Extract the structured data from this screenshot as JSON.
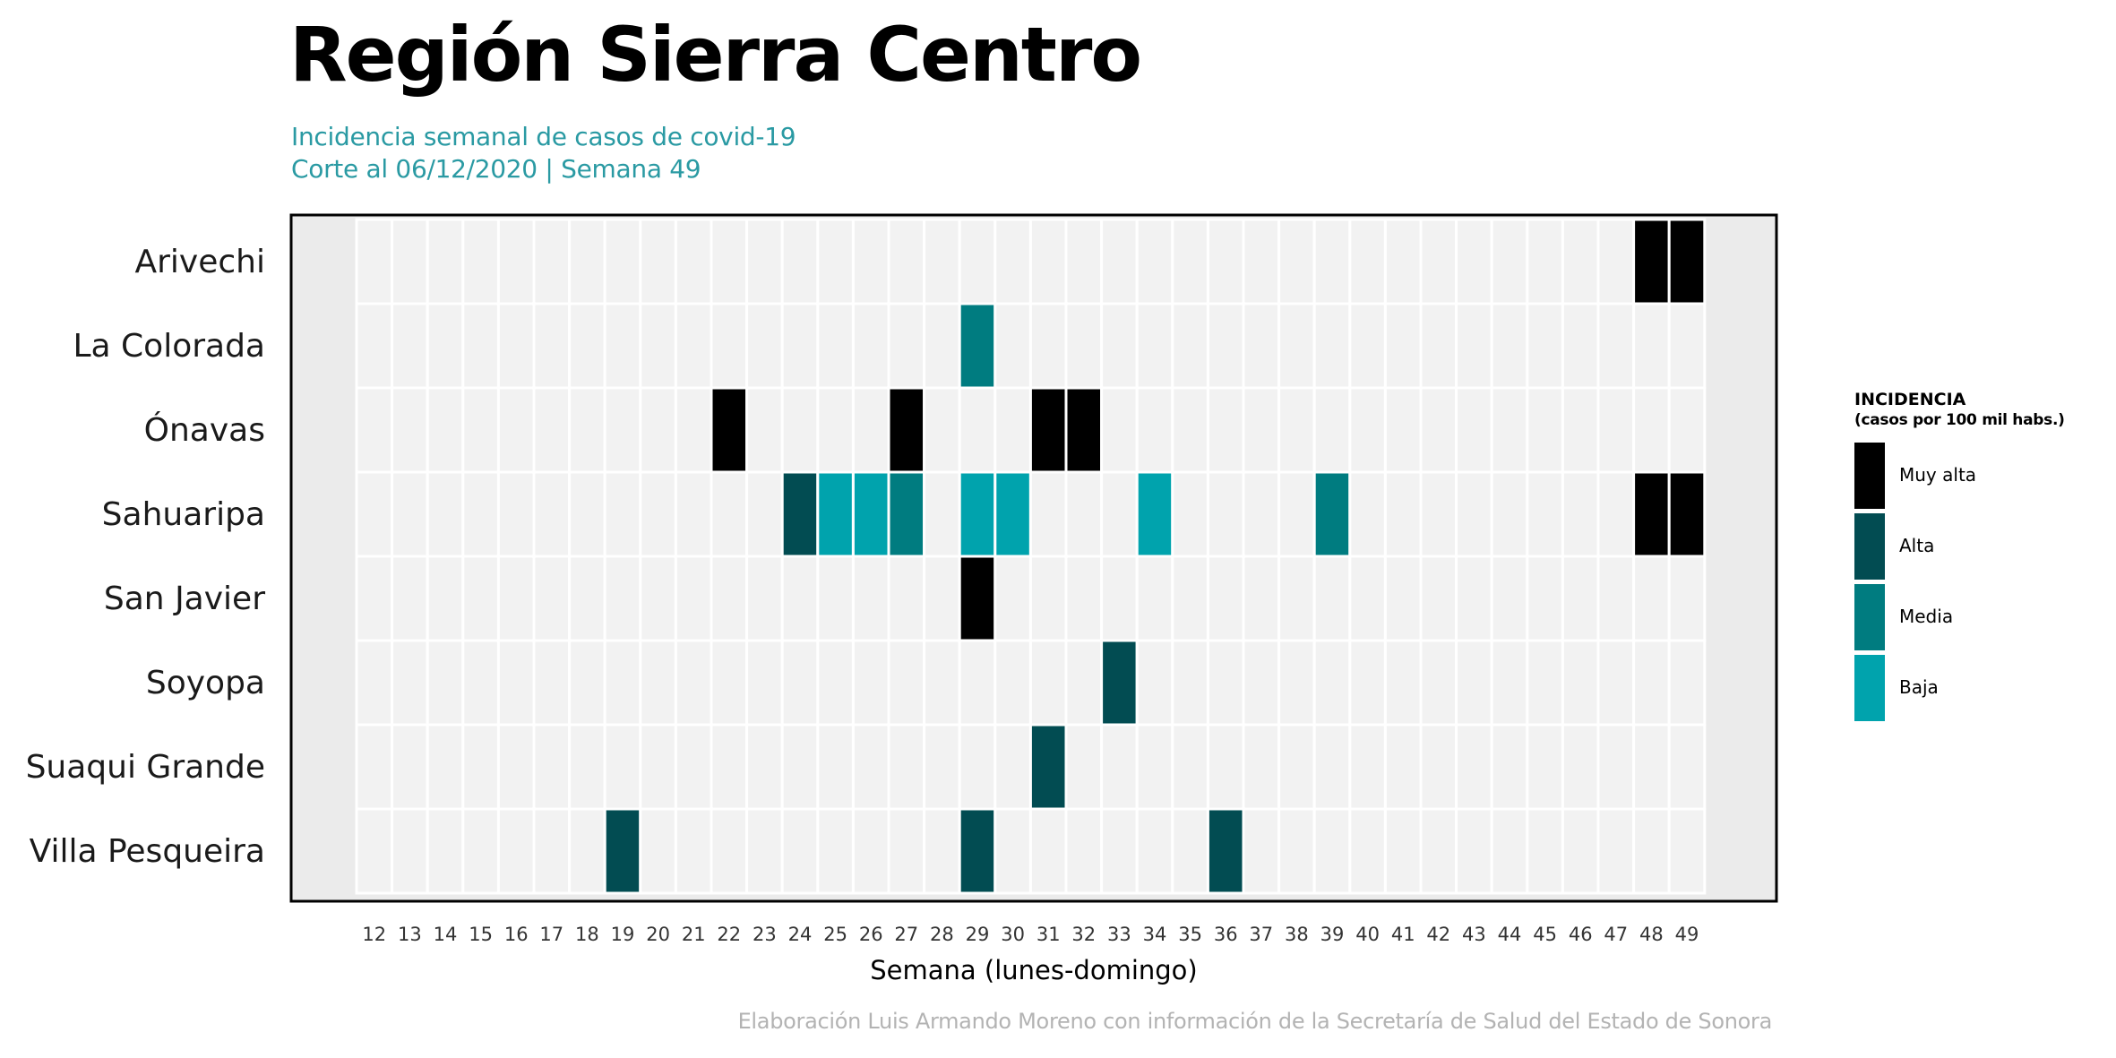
{
  "header": {
    "title": "Región Sierra Centro",
    "subtitle_line1": "Incidencia semanal de casos de covid-19",
    "subtitle_line2": "Corte al 06/12/2020 | Semana 49"
  },
  "caption": "Elaboración Luis Armando Moreno con información de la Secretaría de Salud del Estado de Sonora",
  "legend": {
    "title_line1": "INCIDENCIA",
    "title_line2": "(casos por 100 mil habs.)",
    "items": [
      {
        "label": "Muy alta",
        "color": "#000000"
      },
      {
        "label": "Alta",
        "color": "#024c52"
      },
      {
        "label": "Media",
        "color": "#007c80"
      },
      {
        "label": "Baja",
        "color": "#00a3ad"
      }
    ]
  },
  "colors": {
    "panel_background": "#ebebeb",
    "empty_cell": "#f2f2f2",
    "grid_line": "#ffffff",
    "border": "#000000"
  },
  "chart_data": {
    "type": "heatmap",
    "xlabel": "Semana (lunes-domingo)",
    "ylabel": "",
    "x": [
      12,
      13,
      14,
      15,
      16,
      17,
      18,
      19,
      20,
      21,
      22,
      23,
      24,
      25,
      26,
      27,
      28,
      29,
      30,
      31,
      32,
      33,
      34,
      35,
      36,
      37,
      38,
      39,
      40,
      41,
      42,
      43,
      44,
      45,
      46,
      47,
      48,
      49
    ],
    "y": [
      "Arivechi",
      "La Colorada",
      "Ónavas",
      "Sahuaripa",
      "San Javier",
      "Soyopa",
      "Suaqui Grande",
      "Villa Pesqueira"
    ],
    "levels": [
      "Muy alta",
      "Alta",
      "Media",
      "Baja"
    ],
    "grid": true,
    "legend_position": "right",
    "cells": [
      {
        "municipio": "Arivechi",
        "semana": 48,
        "nivel": "Muy alta"
      },
      {
        "municipio": "Arivechi",
        "semana": 49,
        "nivel": "Muy alta"
      },
      {
        "municipio": "La Colorada",
        "semana": 29,
        "nivel": "Media"
      },
      {
        "municipio": "Ónavas",
        "semana": 22,
        "nivel": "Muy alta"
      },
      {
        "municipio": "Ónavas",
        "semana": 27,
        "nivel": "Muy alta"
      },
      {
        "municipio": "Ónavas",
        "semana": 31,
        "nivel": "Muy alta"
      },
      {
        "municipio": "Ónavas",
        "semana": 32,
        "nivel": "Muy alta"
      },
      {
        "municipio": "Sahuaripa",
        "semana": 24,
        "nivel": "Alta"
      },
      {
        "municipio": "Sahuaripa",
        "semana": 25,
        "nivel": "Baja"
      },
      {
        "municipio": "Sahuaripa",
        "semana": 26,
        "nivel": "Baja"
      },
      {
        "municipio": "Sahuaripa",
        "semana": 27,
        "nivel": "Media"
      },
      {
        "municipio": "Sahuaripa",
        "semana": 29,
        "nivel": "Baja"
      },
      {
        "municipio": "Sahuaripa",
        "semana": 30,
        "nivel": "Baja"
      },
      {
        "municipio": "Sahuaripa",
        "semana": 34,
        "nivel": "Baja"
      },
      {
        "municipio": "Sahuaripa",
        "semana": 39,
        "nivel": "Media"
      },
      {
        "municipio": "Sahuaripa",
        "semana": 48,
        "nivel": "Muy alta"
      },
      {
        "municipio": "Sahuaripa",
        "semana": 49,
        "nivel": "Muy alta"
      },
      {
        "municipio": "San Javier",
        "semana": 29,
        "nivel": "Muy alta"
      },
      {
        "municipio": "Soyopa",
        "semana": 33,
        "nivel": "Alta"
      },
      {
        "municipio": "Suaqui Grande",
        "semana": 31,
        "nivel": "Alta"
      },
      {
        "municipio": "Villa Pesqueira",
        "semana": 19,
        "nivel": "Alta"
      },
      {
        "municipio": "Villa Pesqueira",
        "semana": 29,
        "nivel": "Alta"
      },
      {
        "municipio": "Villa Pesqueira",
        "semana": 36,
        "nivel": "Alta"
      }
    ]
  }
}
